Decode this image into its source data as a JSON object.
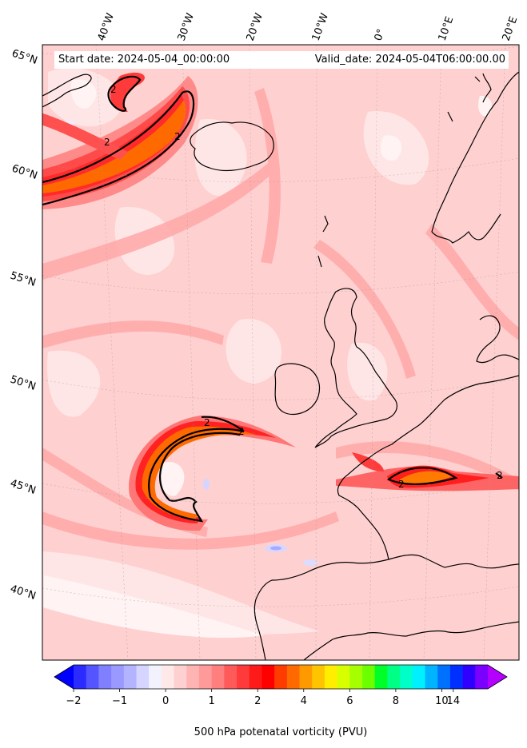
{
  "map": {
    "start_label": "Start date: 2024-05-04_00:00:00",
    "valid_label": "Valid_date: 2024-05-04T06:00:00.00",
    "longitude_labels": [
      "40°W",
      "30°W",
      "20°W",
      "10°W",
      "0°",
      "10°E",
      "20°E"
    ],
    "latitude_labels": [
      "65°N",
      "60°N",
      "55°N",
      "50°N",
      "45°N",
      "40°N"
    ],
    "contour_label": "2",
    "contour_value_pvu": 2,
    "field": "500 hPa potential vorticity",
    "background_color": "#ffd4d4"
  },
  "colorbar": {
    "label": "500 hPa potenatal vorticity (PVU)",
    "ticks": [
      "-2",
      "−1",
      "0",
      "1",
      "2",
      "4",
      "6",
      "8",
      "10",
      "14"
    ],
    "tick_display": [
      "−2",
      "−1",
      "0",
      "1",
      "2",
      "4",
      "6",
      "8",
      "10",
      "14"
    ],
    "colors": [
      "#0000ff",
      "#2b2bff",
      "#5555ff",
      "#7f7fff",
      "#9999ff",
      "#b3b3ff",
      "#d5d5ff",
      "#f2f2ff",
      "#ffe8e8",
      "#ffd0d0",
      "#ffb4b4",
      "#ff9a9a",
      "#ff7f7f",
      "#ff5a5a",
      "#ff3a3a",
      "#ff1a1a",
      "#ff0000",
      "#ff3c00",
      "#ff6a00",
      "#ff9900",
      "#ffc400",
      "#ffee00",
      "#d8ff00",
      "#a6ff00",
      "#6cff00",
      "#00ff29",
      "#00ff85",
      "#00ffc8",
      "#00f0ff",
      "#00b4ff",
      "#0070ff",
      "#0030ff",
      "#3000ff",
      "#7a00ff",
      "#b400ff"
    ]
  }
}
